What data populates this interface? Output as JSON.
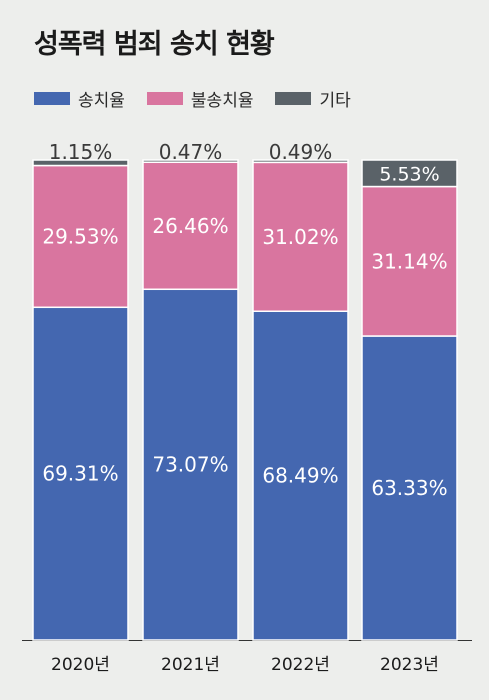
{
  "chart_data": {
    "type": "bar",
    "stacked": true,
    "title": "성폭력 범죄 송치 현황",
    "categories": [
      "2020년",
      "2021년",
      "2022년",
      "2023년"
    ],
    "series": [
      {
        "name": "송치율",
        "color": "#4467b0",
        "values": [
          69.31,
          73.07,
          68.49,
          63.33
        ],
        "labels": [
          "69.31%",
          "73.07%",
          "68.49%",
          "63.33%"
        ]
      },
      {
        "name": "불송치율",
        "color": "#d9759f",
        "values": [
          29.53,
          26.46,
          31.02,
          31.14
        ],
        "labels": [
          "29.53%",
          "26.46%",
          "31.02%",
          "31.14%"
        ]
      },
      {
        "name": "기타",
        "color": "#5a6268",
        "values": [
          1.15,
          0.47,
          0.49,
          5.53
        ],
        "labels": [
          "1.15%",
          "0.47%",
          "0.49%",
          "5.53%"
        ]
      }
    ],
    "ylim": [
      0,
      100
    ],
    "grid": false,
    "legend_position": "top-left"
  }
}
